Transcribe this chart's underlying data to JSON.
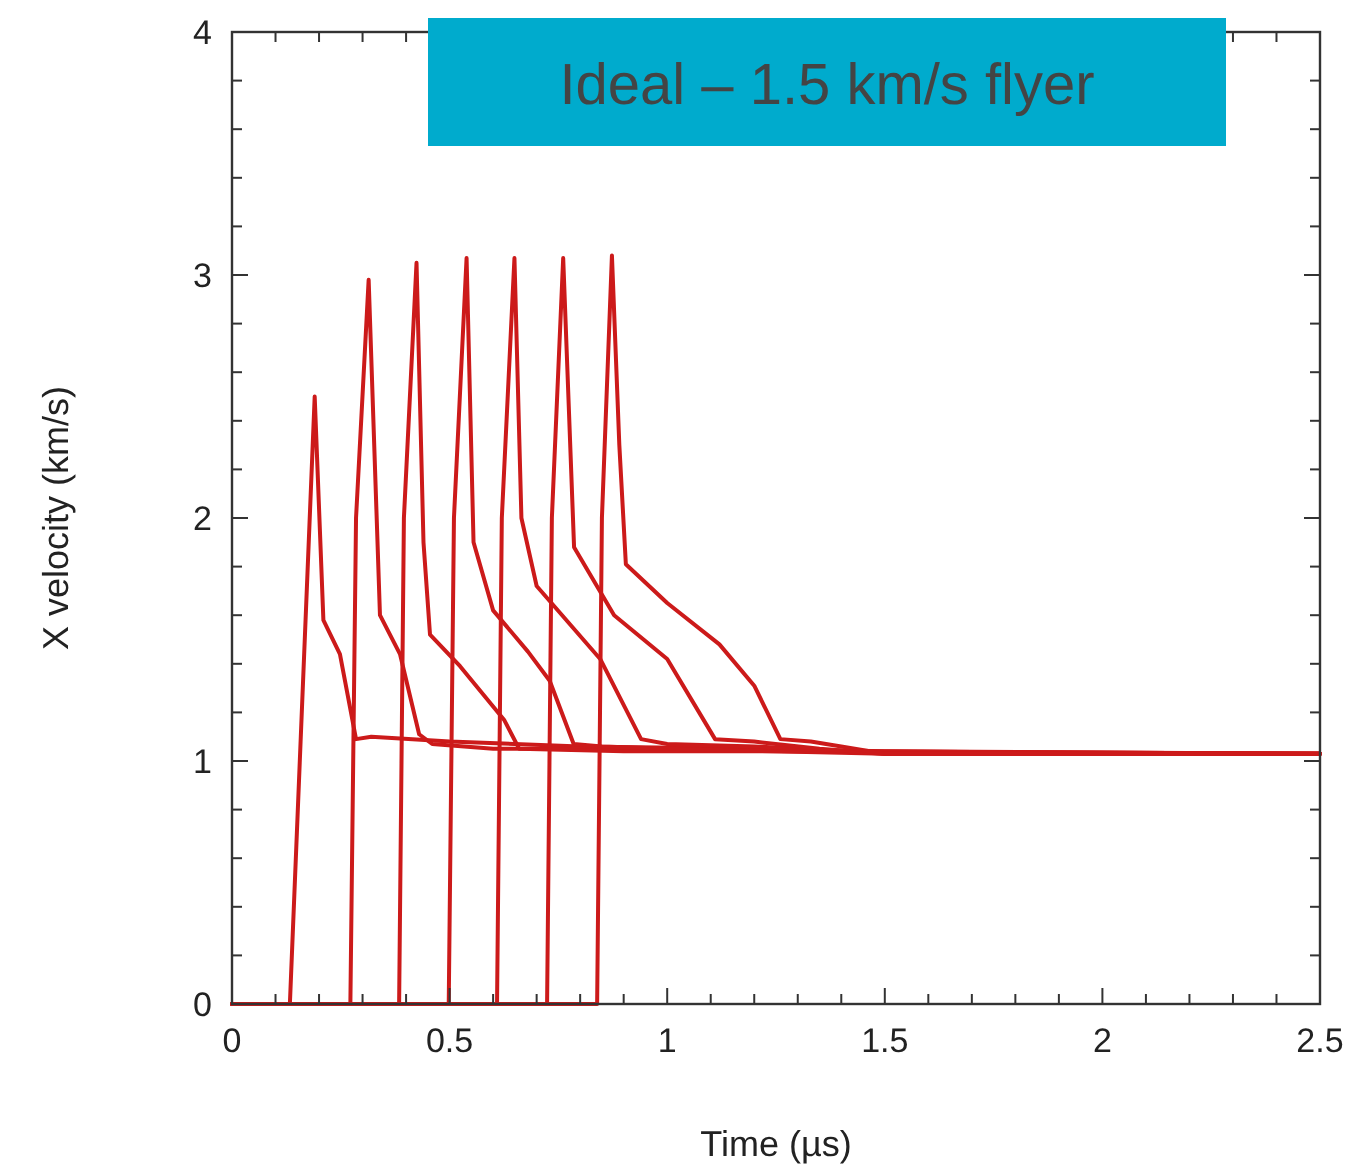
{
  "chart_data": {
    "type": "line",
    "title": "Ideal – 1.5 km/s flyer",
    "xlabel": "Time (µs)",
    "ylabel": "X velocity (km/s)",
    "xlim": [
      0,
      2.5
    ],
    "ylim": [
      0,
      4
    ],
    "xticks": [
      0,
      {
        "value": 0.1,
        "label": null
      },
      {
        "value": 0.2,
        "label": null
      },
      {
        "value": 0.3,
        "label": null
      },
      {
        "value": 0.4,
        "label": null
      },
      0.5,
      {
        "value": 0.6,
        "label": null
      },
      {
        "value": 0.7,
        "label": null
      },
      {
        "value": 0.8,
        "label": null
      },
      {
        "value": 0.9,
        "label": null
      },
      1,
      {
        "value": 1.1,
        "label": null
      },
      {
        "value": 1.2,
        "label": null
      },
      {
        "value": 1.3,
        "label": null
      },
      {
        "value": 1.4,
        "label": null
      },
      1.5,
      {
        "value": 1.6,
        "label": null
      },
      {
        "value": 1.7,
        "label": null
      },
      {
        "value": 1.8,
        "label": null
      },
      {
        "value": 1.9,
        "label": null
      },
      2,
      {
        "value": 2.1,
        "label": null
      },
      {
        "value": 2.2,
        "label": null
      },
      {
        "value": 2.3,
        "label": null
      },
      {
        "value": 2.4,
        "label": null
      },
      2.5
    ],
    "yticks": [
      0,
      {
        "value": 0.2,
        "label": null
      },
      {
        "value": 0.4,
        "label": null
      },
      {
        "value": 0.6,
        "label": null
      },
      {
        "value": 0.8,
        "label": null
      },
      1,
      {
        "value": 1.2,
        "label": null
      },
      {
        "value": 1.4,
        "label": null
      },
      {
        "value": 1.6,
        "label": null
      },
      {
        "value": 1.8,
        "label": null
      },
      2,
      {
        "value": 2.2,
        "label": null
      },
      {
        "value": 2.4,
        "label": null
      },
      {
        "value": 2.6,
        "label": null
      },
      {
        "value": 2.8,
        "label": null
      },
      3,
      {
        "value": 3.2,
        "label": null
      },
      {
        "value": 3.4,
        "label": null
      },
      {
        "value": 3.6,
        "label": null
      },
      {
        "value": 3.8,
        "label": null
      },
      4
    ],
    "grid": false,
    "marker": "none",
    "line_style": "solid",
    "series": [
      {
        "color": "#cc1a1a",
        "x": [
          0,
          0.133,
          0.19,
          0.21,
          0.248,
          0.285,
          0.32,
          0.5,
          0.8,
          1.2,
          1.5,
          2.5
        ],
        "values": [
          0,
          0,
          2.5,
          1.58,
          1.44,
          1.09,
          1.1,
          1.08,
          1.06,
          1.05,
          1.04,
          1.03
        ]
      },
      {
        "color": "#cc1a1a",
        "x": [
          0,
          0.272,
          0.285,
          0.314,
          0.34,
          0.386,
          0.43,
          0.46,
          0.6,
          0.9,
          1.3,
          2.5
        ],
        "values": [
          0,
          0,
          2.0,
          2.98,
          1.6,
          1.44,
          1.11,
          1.07,
          1.05,
          1.05,
          1.04,
          1.03
        ]
      },
      {
        "color": "#cc1a1a",
        "x": [
          0,
          0.384,
          0.395,
          0.424,
          0.44,
          0.455,
          0.524,
          0.625,
          0.66,
          0.9,
          1.4,
          2.5
        ],
        "values": [
          0,
          0,
          2.0,
          3.05,
          1.9,
          1.52,
          1.39,
          1.17,
          1.05,
          1.04,
          1.04,
          1.03
        ]
      },
      {
        "color": "#cc1a1a",
        "x": [
          0,
          0.498,
          0.51,
          0.539,
          0.555,
          0.6,
          0.68,
          0.73,
          0.785,
          0.85,
          1.0,
          1.5,
          2.5
        ],
        "values": [
          0,
          0,
          2.0,
          3.07,
          1.9,
          1.62,
          1.45,
          1.33,
          1.07,
          1.06,
          1.05,
          1.03,
          1.03
        ]
      },
      {
        "color": "#cc1a1a",
        "x": [
          0,
          0.609,
          0.62,
          0.649,
          0.665,
          0.7,
          0.846,
          0.94,
          1.0,
          1.2,
          1.5,
          2.5
        ],
        "values": [
          0,
          0,
          2.0,
          3.07,
          2.0,
          1.72,
          1.42,
          1.09,
          1.07,
          1.06,
          1.03,
          1.03
        ]
      },
      {
        "color": "#cc1a1a",
        "x": [
          0,
          0.724,
          0.735,
          0.761,
          0.786,
          0.878,
          1.0,
          1.11,
          1.2,
          1.35,
          1.5,
          2.5
        ],
        "values": [
          0,
          0,
          2.0,
          3.07,
          1.88,
          1.6,
          1.42,
          1.09,
          1.08,
          1.05,
          1.03,
          1.03
        ]
      },
      {
        "color": "#cc1a1a",
        "x": [
          0,
          0.839,
          0.85,
          0.873,
          0.89,
          0.905,
          1.0,
          1.12,
          1.2,
          1.26,
          1.33,
          1.4,
          1.5,
          2.5
        ],
        "values": [
          0,
          0,
          2.0,
          3.08,
          2.3,
          1.81,
          1.65,
          1.48,
          1.31,
          1.09,
          1.08,
          1.06,
          1.03,
          1.03
        ]
      }
    ]
  }
}
